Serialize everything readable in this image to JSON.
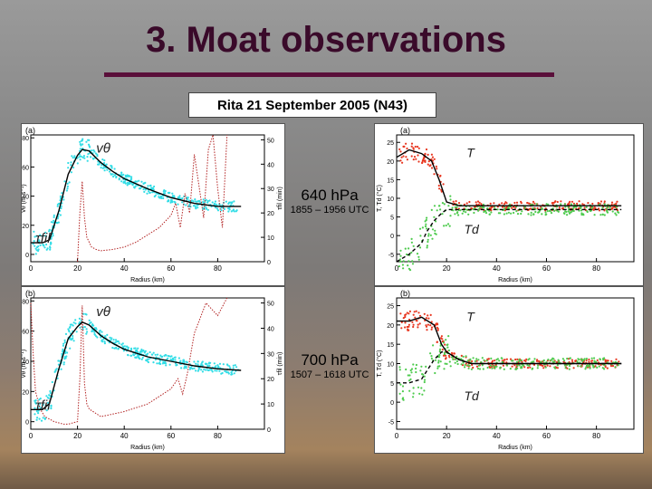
{
  "title": "3. Moat observations",
  "subtitle": "Rita 21 September  2005 (N43)",
  "levels": [
    {
      "pressure": "640 hPa",
      "time": "1855 – 1956 UTC"
    },
    {
      "pressure": "700 hPa",
      "time": "1507 – 1618 UTC"
    }
  ],
  "colors": {
    "vt_points": "#33dde6",
    "mean_line": "#000000",
    "tau_line": "#b22222",
    "T_points": "#e8361f",
    "Td_points": "#4ecb4e",
    "background_outer": "#888888"
  },
  "chart_data": [
    {
      "type": "line",
      "panel": "(a)",
      "xlabel": "Radius (km)",
      "ylabel": "vθ (m s⁻¹)",
      "y2label": "τfil (min)",
      "xlim": [
        0,
        100
      ],
      "ylim": [
        -5,
        82
      ],
      "y2lim": [
        0,
        52
      ],
      "xticks": [
        "0",
        "20",
        "40",
        "60",
        "80"
      ],
      "yticks": [
        "0",
        "20",
        "40",
        "60",
        "80"
      ],
      "y2ticks": [
        "0",
        "10",
        "20",
        "30",
        "40",
        "50"
      ],
      "series_labels": {
        "vt": "vθ",
        "tau": "τfil"
      },
      "series": [
        {
          "role": "vt_mean",
          "x": [
            0,
            5,
            8,
            12,
            16,
            20,
            22,
            25,
            30,
            35,
            40,
            50,
            60,
            70,
            80,
            90
          ],
          "y": [
            8,
            8,
            10,
            30,
            55,
            68,
            72,
            71,
            63,
            57,
            52,
            45,
            39,
            35,
            33,
            33
          ]
        },
        {
          "role": "tau",
          "x": [
            20,
            21,
            22,
            23,
            24,
            26,
            28,
            30,
            35,
            40,
            45,
            50,
            55,
            60,
            62,
            64,
            66,
            68,
            70,
            72,
            74,
            76,
            78,
            80,
            82,
            84
          ],
          "y": [
            0,
            20,
            33,
            18,
            10,
            6,
            5,
            4.5,
            5,
            6,
            8,
            11,
            14,
            19,
            24,
            14,
            28,
            20,
            44,
            31,
            18,
            46,
            52,
            30,
            14,
            52
          ]
        }
      ]
    },
    {
      "type": "line",
      "panel": "(a)",
      "xlabel": "Radius (km)",
      "ylabel": "T, Td (°C)",
      "xlim": [
        0,
        95
      ],
      "ylim": [
        -7,
        27
      ],
      "xticks": [
        "0",
        "20",
        "40",
        "60",
        "80"
      ],
      "yticks": [
        "-5",
        "0",
        "5",
        "10",
        "15",
        "20",
        "25"
      ],
      "series_labels": {
        "T": "T",
        "Td": "Td"
      },
      "series": [
        {
          "role": "T_mean",
          "x": [
            0,
            5,
            10,
            14,
            17,
            20,
            25,
            30,
            40,
            50,
            60,
            70,
            80,
            90
          ],
          "y": [
            21,
            23,
            22,
            20,
            15,
            9,
            8,
            8,
            8,
            8,
            8,
            8,
            8,
            8
          ]
        },
        {
          "role": "Td_mean",
          "x": [
            0,
            5,
            10,
            12,
            15,
            18,
            20,
            25,
            30,
            40,
            50,
            60,
            70,
            80,
            90
          ],
          "y": [
            -7,
            -5,
            -2,
            1,
            4,
            6,
            7,
            7,
            7,
            7,
            7,
            7,
            7,
            7,
            7
          ]
        }
      ]
    },
    {
      "type": "line",
      "panel": "(b)",
      "xlabel": "Radius (km)",
      "ylabel": "vθ (m s⁻¹)",
      "y2label": "τfil (min)",
      "xlim": [
        0,
        100
      ],
      "ylim": [
        -5,
        82
      ],
      "y2lim": [
        0,
        52
      ],
      "xticks": [
        "0",
        "20",
        "40",
        "60",
        "80"
      ],
      "yticks": [
        "0",
        "20",
        "40",
        "60",
        "80"
      ],
      "y2ticks": [
        "0",
        "10",
        "20",
        "30",
        "40",
        "50"
      ],
      "series_labels": {
        "vt": "vθ",
        "tau": "τfil"
      },
      "series": [
        {
          "role": "vt_mean",
          "x": [
            0,
            5,
            8,
            12,
            16,
            20,
            22,
            25,
            30,
            35,
            40,
            50,
            60,
            70,
            80,
            90
          ],
          "y": [
            8,
            8,
            12,
            35,
            55,
            63,
            66,
            64,
            57,
            52,
            48,
            43,
            40,
            37,
            35,
            34
          ]
        },
        {
          "role": "tau",
          "x": [
            0,
            1,
            2,
            4,
            6,
            8,
            10,
            12,
            14,
            16,
            18,
            20,
            21,
            22,
            23,
            24,
            25,
            30,
            40,
            50,
            60,
            63,
            65,
            67,
            70,
            75,
            80,
            84
          ],
          "y": [
            50,
            30,
            15,
            8,
            5,
            4,
            3,
            2.5,
            2,
            2,
            2.5,
            3,
            20,
            49,
            18,
            10,
            8,
            5,
            7,
            10,
            16,
            20,
            14,
            22,
            38,
            50,
            45,
            52
          ]
        }
      ]
    },
    {
      "type": "line",
      "panel": "(b)",
      "xlabel": "Radius (km)",
      "ylabel": "T, Td (°C)",
      "xlim": [
        0,
        95
      ],
      "ylim": [
        -7,
        27
      ],
      "xticks": [
        "0",
        "20",
        "40",
        "60",
        "80"
      ],
      "yticks": [
        "-5",
        "0",
        "5",
        "10",
        "15",
        "20",
        "25"
      ],
      "series_labels": {
        "T": "T",
        "Td": "Td"
      },
      "series": [
        {
          "role": "T_mean",
          "x": [
            0,
            5,
            10,
            15,
            18,
            20,
            25,
            30,
            40,
            50,
            60,
            70,
            80,
            90
          ],
          "y": [
            21,
            21,
            22,
            20,
            15,
            13,
            11,
            10,
            10,
            10,
            10,
            10,
            10,
            10
          ]
        },
        {
          "role": "Td_mean",
          "x": [
            0,
            5,
            10,
            12,
            15,
            18,
            20,
            25,
            30,
            40,
            50,
            60,
            70,
            80,
            90
          ],
          "y": [
            5,
            5,
            6,
            8,
            11,
            13,
            13,
            11,
            10,
            10,
            10,
            10,
            10,
            10,
            10
          ]
        }
      ]
    }
  ]
}
